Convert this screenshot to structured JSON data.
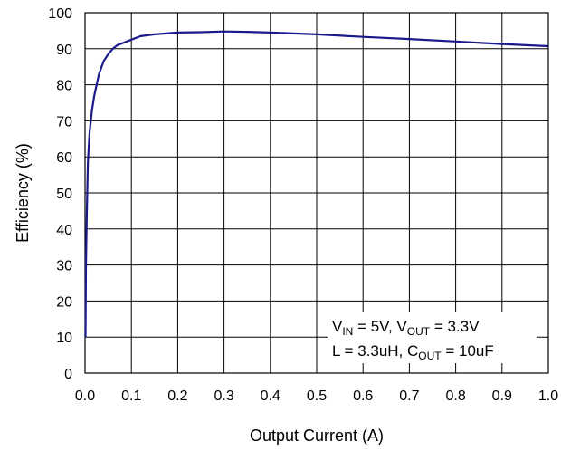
{
  "chart_data": {
    "type": "line",
    "xlabel": "Output Current (A)",
    "ylabel": "Efficiency (%)",
    "xlim": [
      0,
      1.0
    ],
    "ylim": [
      0,
      100
    ],
    "x_ticks": [
      "0.0",
      "0.1",
      "0.2",
      "0.3",
      "0.4",
      "0.5",
      "0.6",
      "0.7",
      "0.8",
      "0.9",
      "1.0"
    ],
    "y_ticks": [
      "0",
      "10",
      "20",
      "30",
      "40",
      "50",
      "60",
      "70",
      "80",
      "90",
      "100"
    ],
    "grid": true,
    "series": [
      {
        "color": "#1a1a8c",
        "x": [
          0.001,
          0.002,
          0.004,
          0.006,
          0.008,
          0.01,
          0.015,
          0.02,
          0.025,
          0.03,
          0.04,
          0.05,
          0.06,
          0.07,
          0.08,
          0.1,
          0.12,
          0.15,
          0.2,
          0.25,
          0.3,
          0.35,
          0.4,
          0.5,
          0.6,
          0.7,
          0.8,
          0.9,
          1.0
        ],
        "y": [
          10,
          30,
          45,
          58,
          63,
          67,
          73,
          77,
          80,
          83,
          86.5,
          88.5,
          90,
          91,
          91.5,
          92.5,
          93.5,
          94,
          94.5,
          94.6,
          94.8,
          94.7,
          94.5,
          94,
          93.3,
          92.7,
          92,
          91.3,
          90.7
        ]
      }
    ],
    "annotation": {
      "line1": {
        "v_in": "V",
        "v_in_sub": "IN",
        "v_in_val": " = 5V, ",
        "v_out": "V",
        "v_out_sub": "OUT",
        "v_out_val": " = 3.3V"
      },
      "line2": {
        "l_text": "L = 3.3uH, ",
        "c_out": "C",
        "c_out_sub": "OUT",
        "c_out_val": " = 10uF"
      }
    }
  }
}
